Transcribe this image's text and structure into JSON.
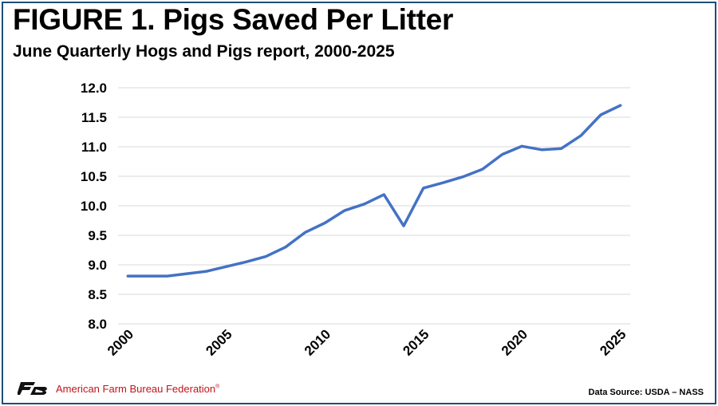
{
  "header": {
    "title": "FIGURE 1. Pigs Saved Per Litter",
    "subtitle": "June Quarterly Hogs and Pigs report, 2000-2025"
  },
  "footer": {
    "organization": "American Farm Bureau Federation",
    "trademark": "®",
    "source": "Data Source:  USDA – NASS"
  },
  "chart_data": {
    "type": "line",
    "title": "FIGURE 1. Pigs Saved Per Litter",
    "subtitle": "June Quarterly Hogs and Pigs report, 2000-2025",
    "xlabel": "",
    "ylabel": "",
    "ylim": [
      8.0,
      12.0
    ],
    "y_ticks": [
      "8.0",
      "8.5",
      "9.0",
      "9.5",
      "10.0",
      "10.5",
      "11.0",
      "11.5",
      "12.0"
    ],
    "x_ticks": [
      "2000",
      "2005",
      "2010",
      "2015",
      "2020",
      "2025"
    ],
    "grid": true,
    "legend": "none",
    "series": [
      {
        "color": "#4472c4",
        "x": [
          2000,
          2001,
          2002,
          2003,
          2004,
          2005,
          2006,
          2007,
          2008,
          2009,
          2010,
          2011,
          2012,
          2013,
          2014,
          2015,
          2016,
          2017,
          2018,
          2019,
          2020,
          2021,
          2022,
          2023,
          2024,
          2025
        ],
        "values": [
          8.81,
          8.81,
          8.81,
          8.85,
          8.89,
          8.97,
          9.05,
          9.14,
          9.3,
          9.55,
          9.71,
          9.92,
          10.03,
          10.19,
          9.66,
          10.3,
          10.39,
          10.49,
          10.62,
          10.87,
          11.01,
          10.95,
          10.97,
          11.19,
          11.54,
          11.7
        ]
      }
    ]
  }
}
